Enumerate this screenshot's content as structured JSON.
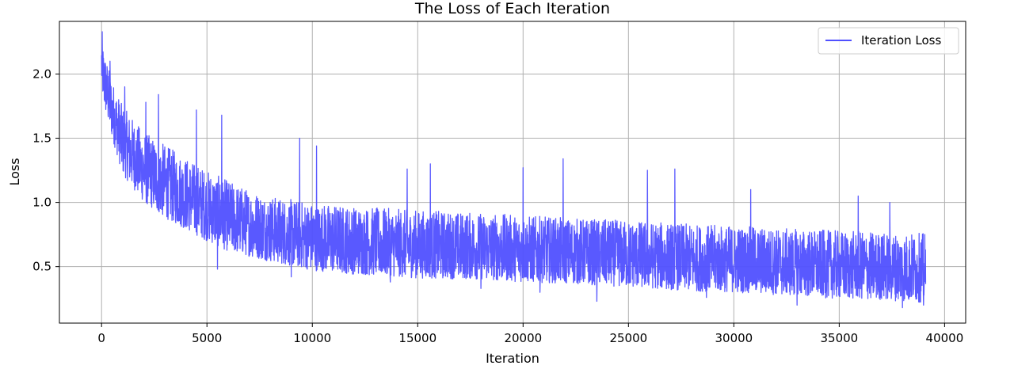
{
  "chart_data": {
    "type": "line",
    "title": "The Loss of Each Iteration",
    "xlabel": "Iteration",
    "ylabel": "Loss",
    "xlim": [
      -2000,
      41000
    ],
    "ylim": [
      0.06,
      2.41
    ],
    "xticks": [
      0,
      5000,
      10000,
      15000,
      20000,
      25000,
      30000,
      35000,
      40000
    ],
    "xtick_labels": [
      "0",
      "5000",
      "10000",
      "15000",
      "20000",
      "25000",
      "30000",
      "35000",
      "40000"
    ],
    "yticks": [
      0.5,
      1.0,
      1.5,
      2.0
    ],
    "ytick_labels": [
      "0.5",
      "1.0",
      "1.5",
      "2.0"
    ],
    "grid": true,
    "legend_position": "top-right",
    "colors": {
      "series": "#5050ff",
      "grid": "#b0b0b0"
    },
    "series": [
      {
        "name": "Iteration Loss",
        "iterations": 39100,
        "envelope": {
          "x": [
            0,
            100,
            500,
            1000,
            2000,
            3000,
            4000,
            5000,
            6000,
            7000,
            8000,
            10000,
            12000,
            15000,
            18000,
            20000,
            22000,
            25000,
            28000,
            30000,
            32000,
            35000,
            37000,
            39100
          ],
          "low": [
            1.9,
            1.75,
            1.5,
            1.22,
            1.0,
            0.88,
            0.79,
            0.7,
            0.62,
            0.58,
            0.54,
            0.47,
            0.44,
            0.41,
            0.4,
            0.38,
            0.37,
            0.34,
            0.31,
            0.3,
            0.28,
            0.25,
            0.24,
            0.22
          ],
          "high": [
            2.3,
            2.2,
            1.95,
            1.75,
            1.55,
            1.45,
            1.35,
            1.25,
            1.17,
            1.1,
            1.05,
            1.0,
            0.97,
            0.94,
            0.92,
            0.9,
            0.88,
            0.86,
            0.83,
            0.82,
            0.8,
            0.78,
            0.77,
            0.76
          ]
        },
        "spikes": [
          [
            30,
            2.33
          ],
          [
            400,
            2.1
          ],
          [
            1100,
            1.9
          ],
          [
            2100,
            1.78
          ],
          [
            2700,
            1.84
          ],
          [
            4500,
            1.72
          ],
          [
            5700,
            1.68
          ],
          [
            9400,
            1.5
          ],
          [
            10200,
            1.44
          ],
          [
            14500,
            1.26
          ],
          [
            15600,
            1.3
          ],
          [
            20000,
            1.27
          ],
          [
            21900,
            1.34
          ],
          [
            25900,
            1.25
          ],
          [
            27200,
            1.26
          ],
          [
            30800,
            1.1
          ],
          [
            35900,
            1.05
          ],
          [
            37400,
            1.0
          ]
        ],
        "dips": [
          [
            5500,
            0.48
          ],
          [
            9000,
            0.42
          ],
          [
            13700,
            0.38
          ],
          [
            18000,
            0.33
          ],
          [
            20800,
            0.3
          ],
          [
            23500,
            0.23
          ],
          [
            28700,
            0.26
          ],
          [
            33000,
            0.2
          ],
          [
            38000,
            0.18
          ],
          [
            39000,
            0.2
          ]
        ]
      }
    ]
  }
}
